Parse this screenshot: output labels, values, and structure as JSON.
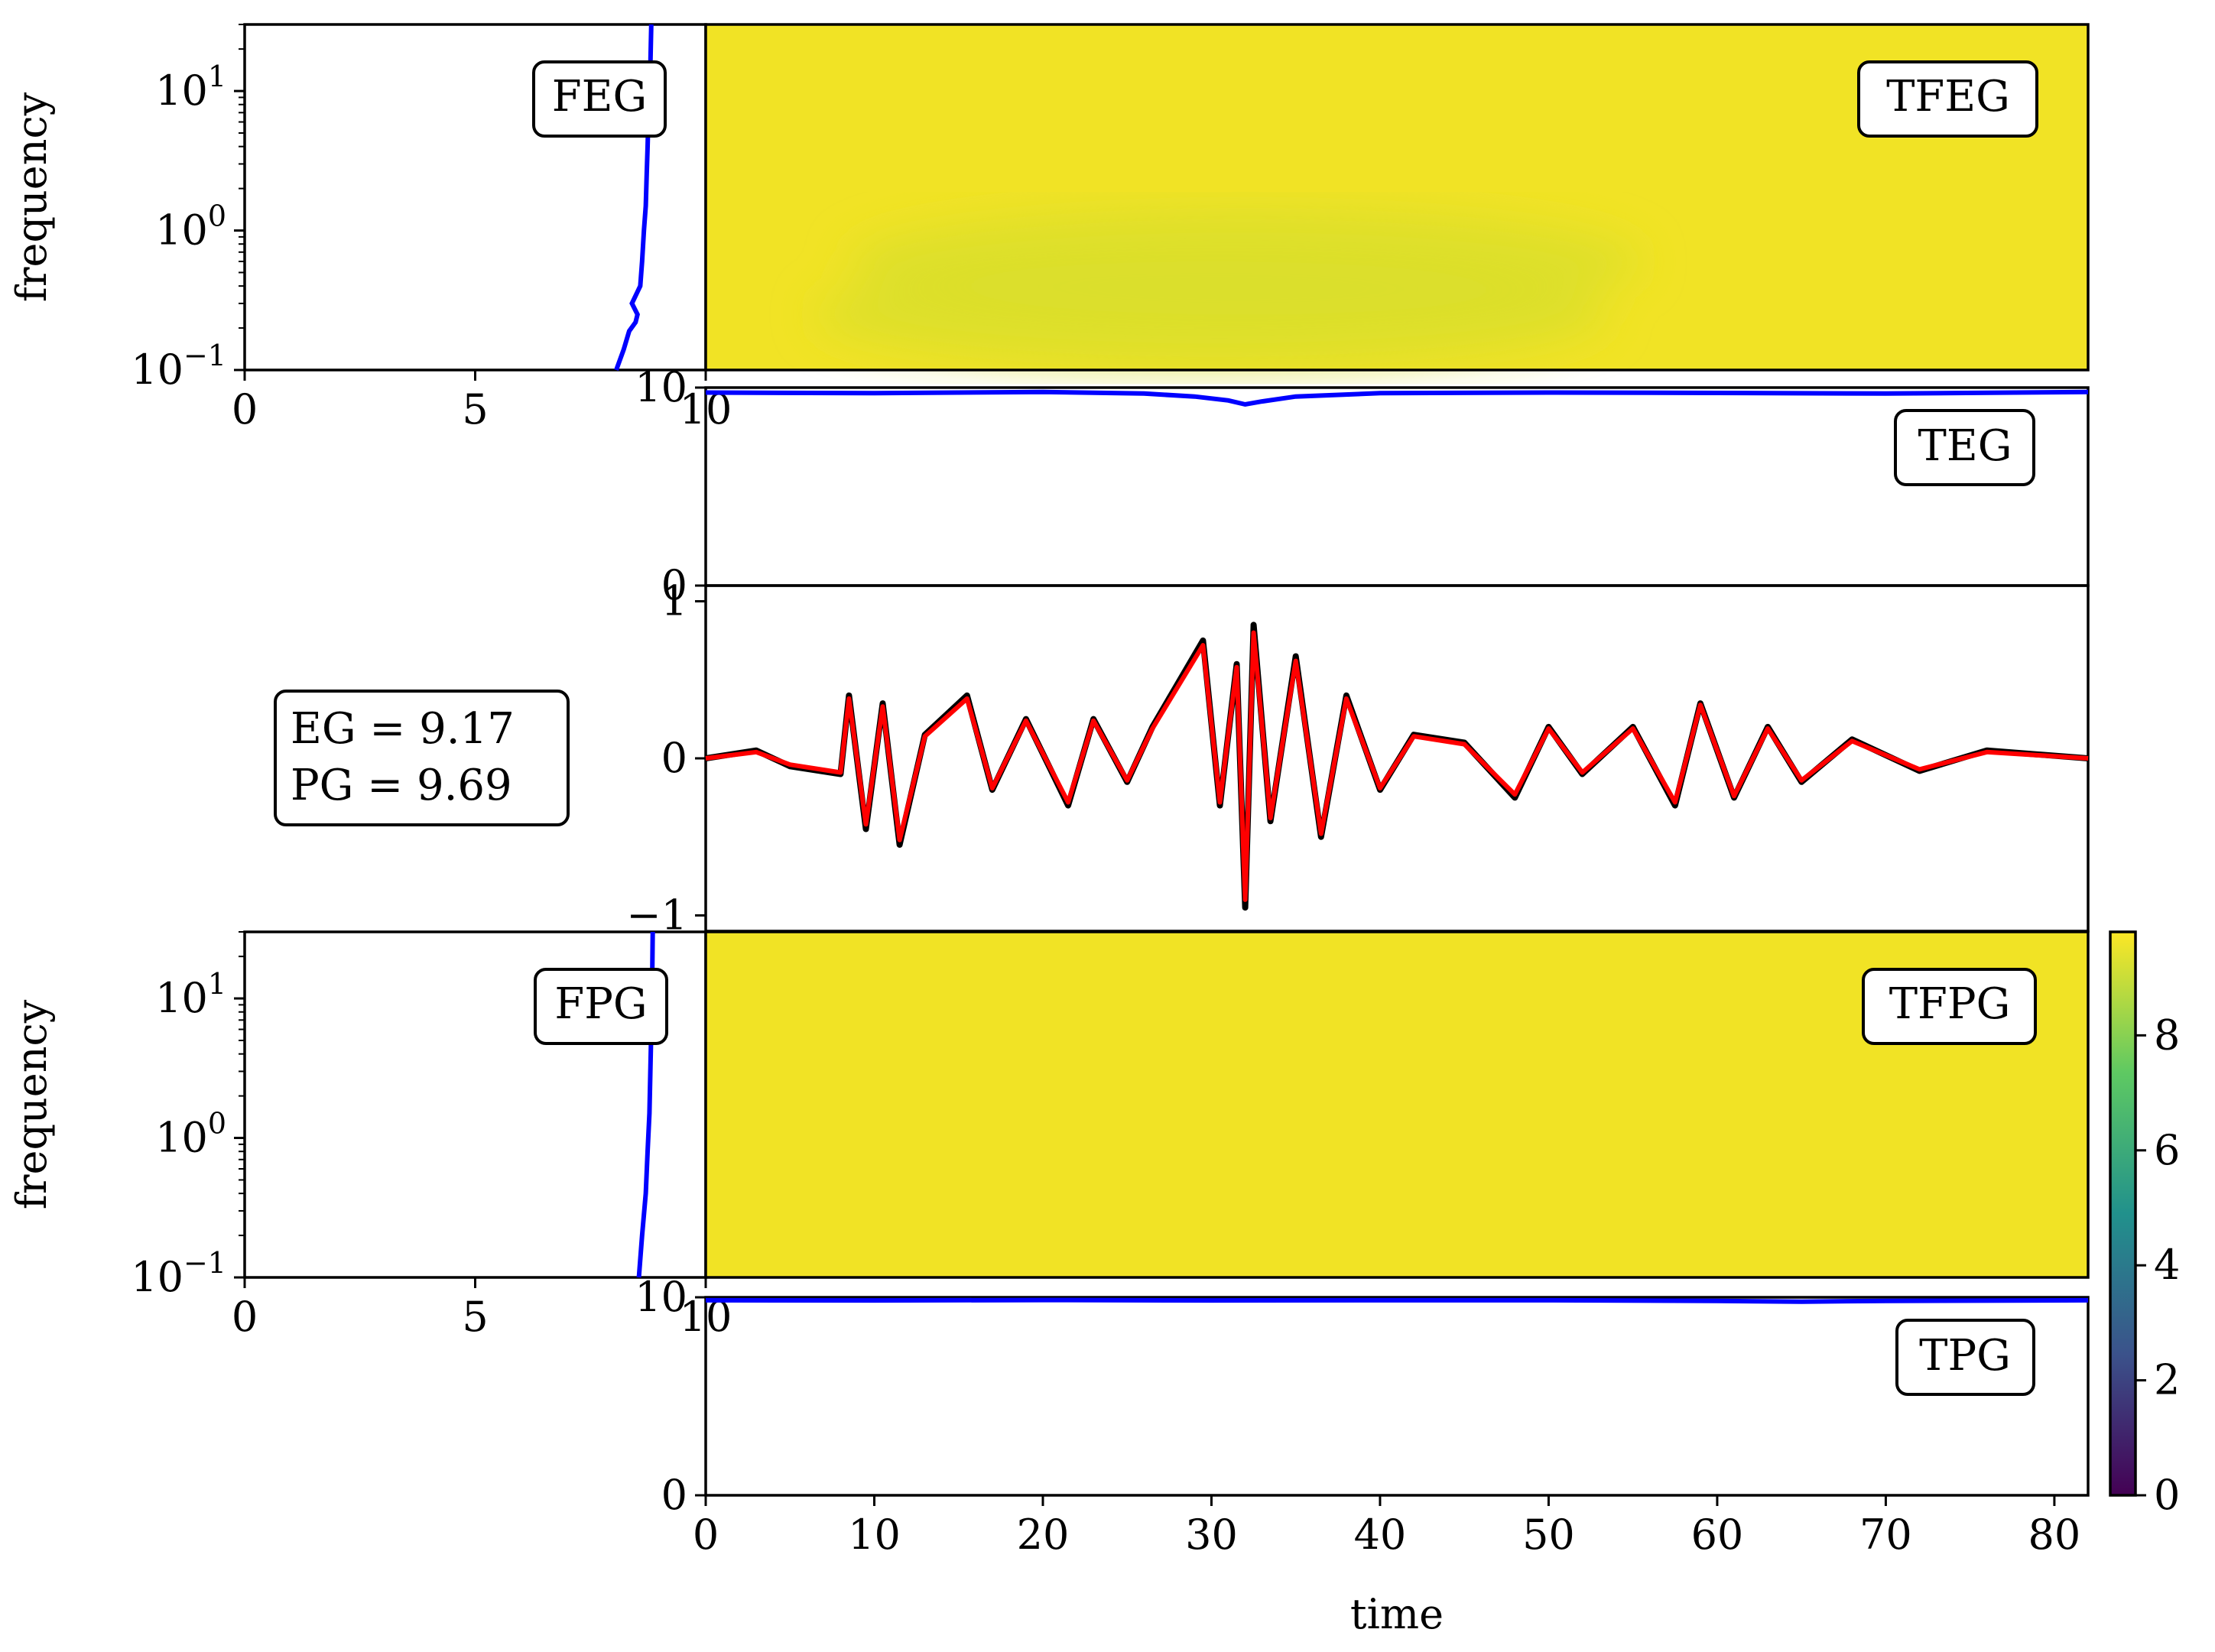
{
  "colors": {
    "tf_fill": "#f1e325",
    "tf_tint": "#d9df2c",
    "blue_line": "#0000ff",
    "red_line": "#ff0000",
    "black_line": "#000000",
    "viridis": [
      "#440154",
      "#3b528b",
      "#21918c",
      "#5ec962",
      "#fde725"
    ]
  },
  "chart_data": [
    {
      "id": "feg",
      "type": "line",
      "annotation": "FEG",
      "ylabel": "frequency",
      "yscale": "log",
      "xlim": [
        0,
        10
      ],
      "ylim": [
        0.1,
        30
      ],
      "xticks": [
        "0",
        "5",
        "10"
      ],
      "yticks": [
        {
          "v": 0.1,
          "base": "10",
          "exp": "−1"
        },
        {
          "v": 1,
          "base": "10",
          "exp": "0"
        },
        {
          "v": 10,
          "base": "10",
          "exp": "1"
        }
      ],
      "series": [
        {
          "color": "blue",
          "x": [
            8.06,
            8.22,
            8.34,
            8.48,
            8.52,
            8.4,
            8.58,
            8.62,
            8.66,
            8.7,
            8.72,
            8.74,
            8.76,
            8.8,
            8.82
          ],
          "y": [
            0.1,
            0.14,
            0.19,
            0.22,
            0.25,
            0.3,
            0.4,
            0.6,
            1.0,
            1.5,
            2.5,
            4.0,
            7.0,
            15,
            30
          ]
        }
      ]
    },
    {
      "id": "tfeg",
      "type": "heatmap",
      "annotation": "TFEG",
      "xlim": [
        0,
        82
      ],
      "ylim": [
        0.1,
        30
      ],
      "value_range": [
        9.4,
        9.8
      ],
      "note_regions": [
        {
          "x": 32,
          "y": 0.6,
          "value": 9.45
        },
        {
          "x": 30,
          "y": 0.25,
          "value": 9.55
        }
      ]
    },
    {
      "id": "teg",
      "type": "line",
      "annotation": "TEG",
      "xlim": [
        0,
        82
      ],
      "ylim": [
        0,
        10
      ],
      "yticks": [
        "0",
        "10"
      ],
      "series": [
        {
          "color": "blue",
          "x": [
            0,
            10,
            20,
            26,
            29,
            31,
            32,
            33,
            35,
            40,
            50,
            60,
            70,
            82
          ],
          "y": [
            9.75,
            9.72,
            9.78,
            9.7,
            9.55,
            9.35,
            9.15,
            9.3,
            9.55,
            9.72,
            9.75,
            9.73,
            9.7,
            9.78
          ]
        }
      ]
    },
    {
      "id": "signal",
      "type": "line",
      "xlim": [
        0,
        82
      ],
      "ylim": [
        -1.1,
        1.1
      ],
      "yticks": [
        "−1",
        "0",
        "1"
      ],
      "annotation_lines": [
        "EG = 9.17",
        "PG = 9.69"
      ],
      "series": [
        {
          "color": "black",
          "x": [
            0,
            3,
            5,
            8,
            8.5,
            9.5,
            10.5,
            11.5,
            13,
            15.5,
            17,
            19,
            21.5,
            23,
            25,
            26.5,
            29.5,
            30.5,
            31.5,
            32,
            32.5,
            33.5,
            35,
            36.5,
            38,
            40,
            42,
            45,
            48,
            50,
            52,
            55,
            57.5,
            59,
            61,
            63,
            65,
            68,
            72,
            76,
            82
          ],
          "y": [
            0,
            0.05,
            -0.05,
            -0.1,
            0.4,
            -0.45,
            0.35,
            -0.55,
            0.15,
            0.4,
            -0.2,
            0.25,
            -0.3,
            0.25,
            -0.15,
            0.2,
            0.75,
            -0.3,
            0.6,
            -0.95,
            0.85,
            -0.4,
            0.65,
            -0.5,
            0.4,
            -0.2,
            0.15,
            0.1,
            -0.25,
            0.2,
            -0.1,
            0.2,
            -0.3,
            0.35,
            -0.25,
            0.2,
            -0.15,
            0.12,
            -0.08,
            0.05,
            0
          ]
        },
        {
          "color": "red",
          "x": [
            0,
            3,
            5,
            8,
            8.5,
            9.5,
            10.5,
            11.5,
            13,
            15.5,
            17,
            19,
            21.5,
            23,
            25,
            26.5,
            29.5,
            30.5,
            31.5,
            32,
            32.5,
            33.5,
            35,
            36.5,
            38,
            40,
            42,
            45,
            48,
            50,
            52,
            55,
            57.5,
            59,
            61,
            63,
            65,
            68,
            72,
            76,
            82
          ],
          "y": [
            0,
            0.04,
            -0.04,
            -0.09,
            0.38,
            -0.42,
            0.33,
            -0.52,
            0.14,
            0.38,
            -0.19,
            0.24,
            -0.28,
            0.24,
            -0.14,
            0.19,
            0.72,
            -0.28,
            0.58,
            -0.9,
            0.8,
            -0.38,
            0.62,
            -0.48,
            0.38,
            -0.19,
            0.14,
            0.09,
            -0.23,
            0.19,
            -0.09,
            0.19,
            -0.28,
            0.34,
            -0.24,
            0.19,
            -0.14,
            0.11,
            -0.07,
            0.04,
            0
          ]
        }
      ]
    },
    {
      "id": "fpg",
      "type": "line",
      "annotation": "FPG",
      "ylabel": "frequency",
      "yscale": "log",
      "xlim": [
        0,
        10
      ],
      "ylim": [
        0.1,
        30
      ],
      "xticks": [
        "0",
        "5",
        "10"
      ],
      "yticks": [
        {
          "v": 0.1,
          "base": "10",
          "exp": "−1"
        },
        {
          "v": 1,
          "base": "10",
          "exp": "0"
        },
        {
          "v": 10,
          "base": "10",
          "exp": "1"
        }
      ],
      "series": [
        {
          "color": "blue",
          "x": [
            8.55,
            8.62,
            8.7,
            8.74,
            8.78,
            8.8,
            8.82,
            8.84,
            8.85
          ],
          "y": [
            0.1,
            0.2,
            0.4,
            0.8,
            1.5,
            3.0,
            6.0,
            15,
            30
          ]
        }
      ]
    },
    {
      "id": "tfpg",
      "type": "heatmap",
      "annotation": "TFPG",
      "xlim": [
        0,
        82
      ],
      "ylim": [
        0.1,
        30
      ],
      "value_range": [
        9.6,
        9.8
      ],
      "colorbar": {
        "range": [
          0,
          9.8
        ],
        "ticks": [
          "0",
          "2",
          "4",
          "6",
          "8"
        ]
      }
    },
    {
      "id": "tpg",
      "type": "line",
      "annotation": "TPG",
      "xlabel": "time",
      "xlim": [
        0,
        82
      ],
      "ylim": [
        0,
        10
      ],
      "xticks": [
        "0",
        "10",
        "20",
        "30",
        "40",
        "50",
        "60",
        "70",
        "80"
      ],
      "yticks": [
        "0",
        "10"
      ],
      "series": [
        {
          "color": "blue",
          "x": [
            0,
            10,
            20,
            30,
            40,
            50,
            60,
            65,
            70,
            82
          ],
          "y": [
            9.85,
            9.84,
            9.86,
            9.84,
            9.85,
            9.85,
            9.82,
            9.78,
            9.82,
            9.85
          ]
        }
      ]
    }
  ]
}
